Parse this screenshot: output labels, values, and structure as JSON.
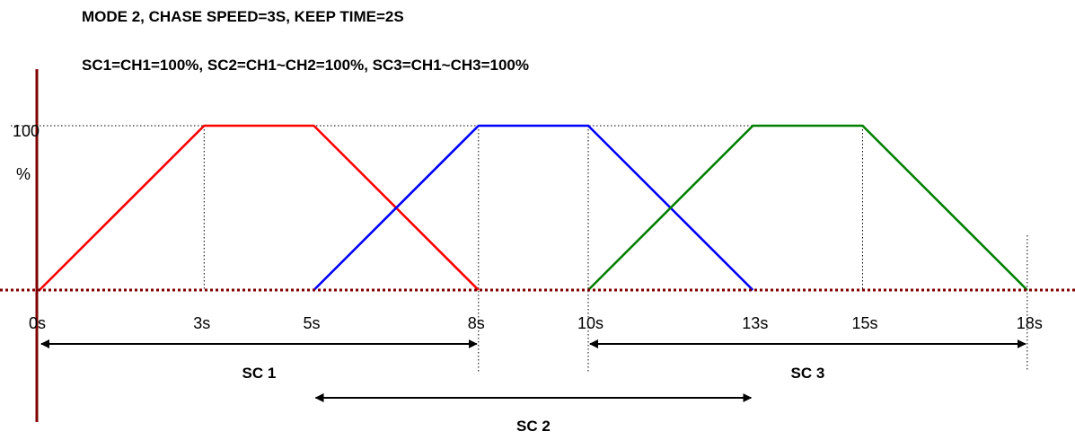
{
  "header": {
    "line1": "MODE 2, CHASE SPEED=3S, KEEP TIME=2S",
    "line2": "SC1=CH1=100%, SC2=CH1~CH2=100%, SC3=CH1~CH3=100%"
  },
  "axis": {
    "y_max_label": "100",
    "y_unit_label": "%",
    "x_ticks": [
      {
        "t": 0,
        "label": "0s"
      },
      {
        "t": 3,
        "label": "3s"
      },
      {
        "t": 5,
        "label": "5s"
      },
      {
        "t": 8,
        "label": "8s"
      },
      {
        "t": 10,
        "label": "10s"
      },
      {
        "t": 13,
        "label": "13s"
      },
      {
        "t": 15,
        "label": "15s"
      },
      {
        "t": 18,
        "label": "18s"
      }
    ]
  },
  "chart_data": {
    "type": "line",
    "x_unit": "s",
    "y_unit": "%",
    "xlim": [
      0,
      18
    ],
    "ylim": [
      0,
      100
    ],
    "series": [
      {
        "color": "#ff0000",
        "points": [
          [
            0,
            0
          ],
          [
            3,
            100
          ],
          [
            5,
            100
          ],
          [
            8,
            0
          ]
        ]
      },
      {
        "color": "#0000ff",
        "points": [
          [
            5,
            0
          ],
          [
            8,
            100
          ],
          [
            10,
            100
          ],
          [
            13,
            0
          ]
        ]
      },
      {
        "color": "#008000",
        "points": [
          [
            10,
            0
          ],
          [
            13,
            100
          ],
          [
            15,
            100
          ],
          [
            18,
            0
          ]
        ]
      }
    ]
  },
  "spans": [
    {
      "label": "SC 1",
      "from": 0,
      "to": 8
    },
    {
      "label": "SC 2",
      "from": 5,
      "to": 13
    },
    {
      "label": "SC 3",
      "from": 10,
      "to": 18
    }
  ],
  "colors": {
    "axis": "#800000",
    "guide": "#000000"
  }
}
